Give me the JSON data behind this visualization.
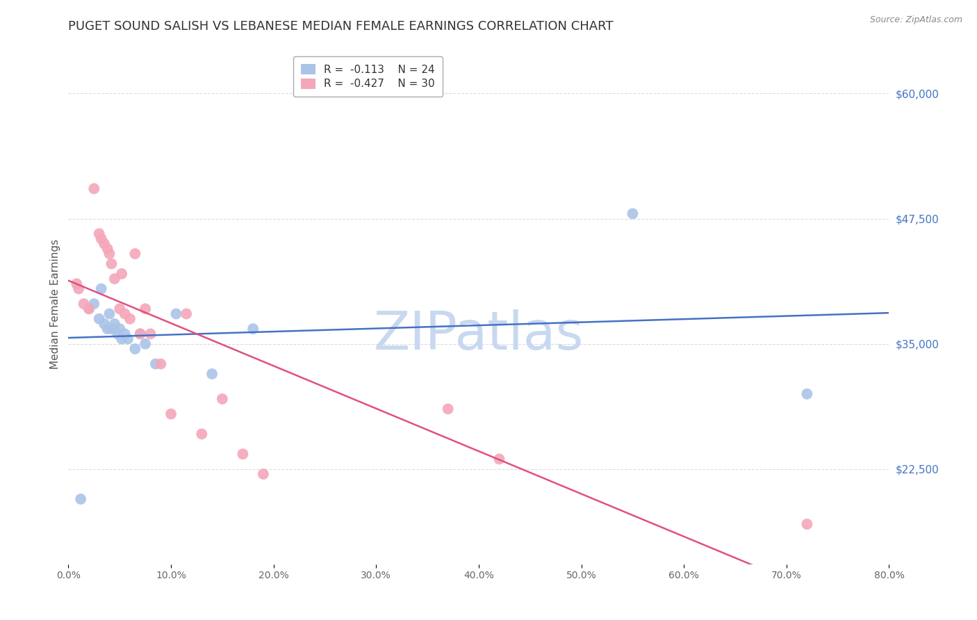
{
  "title": "PUGET SOUND SALISH VS LEBANESE MEDIAN FEMALE EARNINGS CORRELATION CHART",
  "source": "Source: ZipAtlas.com",
  "ylabel": "Median Female Earnings",
  "xlabel_ticks": [
    "0.0%",
    "10.0%",
    "20.0%",
    "30.0%",
    "40.0%",
    "50.0%",
    "60.0%",
    "70.0%",
    "80.0%"
  ],
  "xlabel_vals": [
    0,
    10,
    20,
    30,
    40,
    50,
    60,
    70,
    80
  ],
  "right_ytick_labels": [
    "$60,000",
    "$47,500",
    "$35,000",
    "$22,500"
  ],
  "right_ytick_vals": [
    60000,
    47500,
    35000,
    22500
  ],
  "ylim": [
    13000,
    65000
  ],
  "xlim": [
    0,
    80
  ],
  "watermark": "ZIPatlas",
  "series": [
    {
      "name": "Puget Sound Salish",
      "R": -0.113,
      "N": 24,
      "color": "#aac4e8",
      "line_color": "#4472c4",
      "x": [
        1.2,
        2.0,
        2.5,
        3.0,
        3.2,
        3.5,
        3.8,
        4.0,
        4.2,
        4.5,
        4.8,
        5.0,
        5.2,
        5.5,
        5.8,
        6.5,
        7.0,
        7.5,
        8.5,
        10.5,
        14.0,
        18.0,
        55.0,
        72.0
      ],
      "y": [
        19500,
        38500,
        39000,
        37500,
        40500,
        37000,
        36500,
        38000,
        36500,
        37000,
        36000,
        36500,
        35500,
        36000,
        35500,
        34500,
        36000,
        35000,
        33000,
        38000,
        32000,
        36500,
        48000,
        30000
      ]
    },
    {
      "name": "Lebanese",
      "R": -0.427,
      "N": 30,
      "color": "#f4a7b9",
      "line_color": "#e05080",
      "x": [
        0.8,
        1.0,
        1.5,
        2.0,
        2.5,
        3.0,
        3.2,
        3.5,
        3.8,
        4.0,
        4.2,
        4.5,
        5.0,
        5.2,
        5.5,
        6.0,
        6.5,
        7.0,
        7.5,
        8.0,
        9.0,
        10.0,
        11.5,
        13.0,
        15.0,
        17.0,
        19.0,
        37.0,
        42.0,
        72.0
      ],
      "y": [
        41000,
        40500,
        39000,
        38500,
        50500,
        46000,
        45500,
        45000,
        44500,
        44000,
        43000,
        41500,
        38500,
        42000,
        38000,
        37500,
        44000,
        36000,
        38500,
        36000,
        33000,
        28000,
        38000,
        26000,
        29500,
        24000,
        22000,
        28500,
        23500,
        17000
      ]
    }
  ],
  "title_fontsize": 13,
  "axis_label_fontsize": 11,
  "tick_fontsize": 10,
  "right_tick_color": "#4472c4",
  "background_color": "#ffffff",
  "grid_color": "#cccccc",
  "grid_alpha": 0.7,
  "watermark_color": "#c8d8f0",
  "watermark_fontsize": 55,
  "legend_R_color": "#e05080",
  "legend_N_color": "#333333"
}
